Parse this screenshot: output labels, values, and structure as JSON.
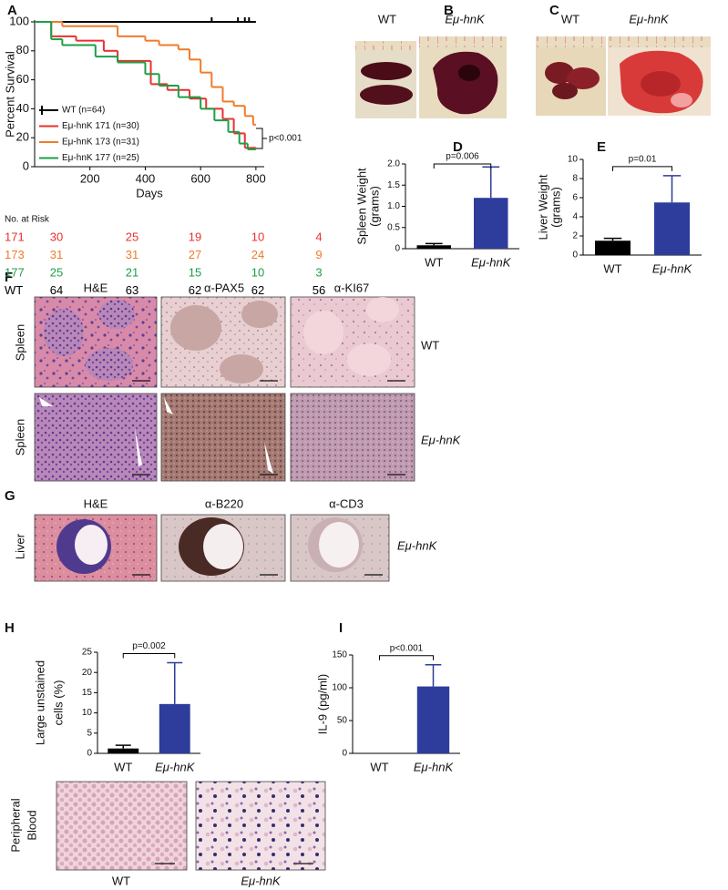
{
  "panel_letters": [
    "A",
    "B",
    "C",
    "D",
    "E",
    "F",
    "G",
    "H",
    "I"
  ],
  "chart_data": [
    {
      "type": "survival",
      "y_label": "Percent Survival",
      "x_label": "Days",
      "xlim": [
        0,
        830
      ],
      "xticks": [
        200,
        400,
        600,
        800
      ],
      "ylim": [
        0,
        100
      ],
      "yticks": [
        0,
        20,
        40,
        60,
        80,
        100
      ],
      "series": [
        {
          "name": "WT (n=64)",
          "color": "#000000",
          "x": [
            100,
            800
          ],
          "values": [
            100,
            100
          ],
          "censor_x": [
            640,
            735,
            760,
            775
          ]
        },
        {
          "name": "Eμ-hnK 171 (n=30)",
          "color": "#e8312f",
          "x": [
            0,
            60,
            150,
            250,
            300,
            420,
            480,
            560,
            620,
            680,
            720,
            760,
            800
          ],
          "values": [
            100,
            90,
            87,
            80,
            73,
            57,
            53,
            47,
            40,
            33,
            23,
            13,
            13
          ]
        },
        {
          "name": "Eμ-hnK 173 (n=31)",
          "color": "#f07b2a",
          "x": [
            0,
            100,
            300,
            400,
            450,
            520,
            560,
            600,
            640,
            680,
            720,
            760,
            790,
            800
          ],
          "values": [
            100,
            97,
            90,
            87,
            84,
            81,
            74,
            65,
            55,
            45,
            42,
            35,
            29,
            29
          ]
        },
        {
          "name": "Eμ-hnK 177 (n=25)",
          "color": "#1e9e48",
          "x": [
            0,
            60,
            100,
            220,
            300,
            400,
            450,
            520,
            600,
            650,
            700,
            740,
            770,
            800
          ],
          "values": [
            100,
            88,
            84,
            76,
            72,
            64,
            56,
            48,
            40,
            32,
            24,
            16,
            12,
            12
          ]
        }
      ],
      "annotation": "p<0.001",
      "risk_table": {
        "title": "No. at Risk",
        "rows": [
          {
            "label": "171",
            "color": "#e8312f",
            "values": [
              30,
              25,
              19,
              10,
              4
            ]
          },
          {
            "label": "173",
            "color": "#f07b2a",
            "values": [
              31,
              31,
              27,
              24,
              9
            ]
          },
          {
            "label": "177",
            "color": "#1e9e48",
            "values": [
              25,
              21,
              15,
              10,
              3
            ]
          },
          {
            "label": "WT",
            "color": "#000000",
            "values": [
              64,
              63,
              62,
              62,
              56
            ]
          }
        ]
      }
    },
    {
      "type": "bar",
      "categories": [
        "WT",
        "Eμ-hnK"
      ],
      "values": [
        0.08,
        1.2
      ],
      "errors": [
        0.04,
        0.73
      ],
      "colors": [
        "#000000",
        "#2e3d9c"
      ],
      "y_label": [
        "Spleen Weight",
        "(grams)"
      ],
      "ylim": [
        0,
        2
      ],
      "yticks": [
        0,
        0.5,
        {
          "value": 1,
          "label": "1.0"
        },
        1.5,
        {
          "value": 2,
          "label": "2.0"
        }
      ],
      "annotation": "p=0.006"
    },
    {
      "type": "bar",
      "categories": [
        "WT",
        "Eμ-hnK"
      ],
      "values": [
        1.5,
        5.5
      ],
      "errors": [
        0.25,
        2.8
      ],
      "colors": [
        "#000000",
        "#2e3d9c"
      ],
      "y_label": [
        "Liver Weight",
        "(grams)"
      ],
      "ylim": [
        0,
        10
      ],
      "yticks": [
        0,
        2,
        4,
        6,
        8,
        10
      ],
      "annotation": "p=0.01"
    },
    {
      "type": "bar",
      "categories": [
        "WT",
        "Eμ-hnK"
      ],
      "values": [
        1.2,
        12.2
      ],
      "errors": [
        0.8,
        10.2
      ],
      "colors": [
        "#000000",
        "#2e3d9c"
      ],
      "y_label": [
        "Large unstained",
        "cells (%)"
      ],
      "ylim": [
        0,
        25
      ],
      "yticks": [
        0,
        5,
        10,
        15,
        20,
        25
      ],
      "annotation": "p=0.002"
    },
    {
      "type": "bar",
      "categories": [
        "WT",
        "Eμ-hnK"
      ],
      "values": [
        0,
        102
      ],
      "errors": [
        0,
        33
      ],
      "colors": [
        "#000000",
        "#2e3d9c"
      ],
      "y_label": [
        "IL-9 (pg/ml)"
      ],
      "ylim": [
        0,
        150
      ],
      "yticks": [
        0,
        50,
        100,
        150
      ],
      "annotation": "p<0.001"
    }
  ],
  "panels": {
    "B": {
      "labels": [
        "WT",
        "Eμ-hnK"
      ]
    },
    "C": {
      "labels": [
        "WT",
        "Eμ-hnK"
      ]
    },
    "F": {
      "columns": [
        "H&E",
        "α-PAX5",
        "α-KI67"
      ],
      "rows": [
        "Spleen",
        "Spleen"
      ],
      "conditions": [
        "WT",
        "Eμ-hnK"
      ]
    },
    "G": {
      "columns": [
        "H&E",
        "α-B220",
        "α-CD3"
      ],
      "rows": [
        "Liver"
      ],
      "conditions": [
        "Eμ-hnK"
      ]
    },
    "blood": {
      "row_label": [
        "Peripheral",
        "Blood"
      ],
      "labels": [
        "WT",
        "Eμ-hnK"
      ]
    }
  }
}
